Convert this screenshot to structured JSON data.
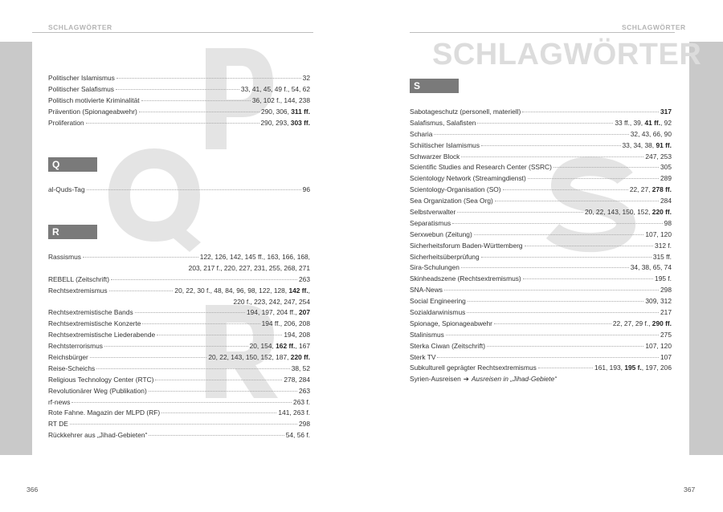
{
  "running_head_left": "SCHLAGWÖRTER",
  "running_head_right": "SCHLAGWÖRTER",
  "title": "SCHLAGWÖRTER",
  "page_left": "366",
  "page_right": "367",
  "letters": {
    "P": "P",
    "Q": "Q",
    "R": "R",
    "S": "S"
  },
  "left_sections": [
    {
      "id": "p",
      "entries": [
        {
          "term": "Politischer Islamismus",
          "lines": [
            [
              {
                "t": "32"
              }
            ]
          ]
        },
        {
          "term": "Politischer Salafismus",
          "lines": [
            [
              {
                "t": "33, 41, 45, 49 f., 54, 62"
              }
            ]
          ]
        },
        {
          "term": "Politisch motivierte Kriminalität",
          "lines": [
            [
              {
                "t": "36, 102 f., 144, 238"
              }
            ]
          ]
        },
        {
          "term": "Prävention (Spionageabwehr)",
          "lines": [
            [
              {
                "t": "290, 306, "
              },
              {
                "t": "311 ff.",
                "b": true
              }
            ]
          ]
        },
        {
          "term": "Proliferation",
          "lines": [
            [
              {
                "t": "290, 293, "
              },
              {
                "t": "303 ff.",
                "b": true
              }
            ]
          ]
        }
      ]
    },
    {
      "id": "q",
      "entries": [
        {
          "term": "al-Quds-Tag",
          "lines": [
            [
              {
                "t": "96"
              }
            ]
          ]
        }
      ]
    },
    {
      "id": "r",
      "entries": [
        {
          "term": "Rassismus",
          "lines": [
            [
              {
                "t": "122, 126, 142, 145 ff., 163, 166, 168,"
              }
            ],
            [
              {
                "t": "203, 217 f., 220, 227, 231, 255, 268, 271"
              }
            ]
          ]
        },
        {
          "term": "REBELL (Zeitschrift)",
          "lines": [
            [
              {
                "t": "263"
              }
            ]
          ]
        },
        {
          "term": "Rechtsextremismus",
          "lines": [
            [
              {
                "t": "20, 22, 30 f., 48, 84, 96, 98, 122, 128, "
              },
              {
                "t": "142 ff.",
                "b": true
              },
              {
                "t": ","
              }
            ],
            [
              {
                "t": "220 f., 223, 242, 247, 254"
              }
            ]
          ]
        },
        {
          "term": "Rechtsextremistische Bands",
          "lines": [
            [
              {
                "t": "194, 197, 204 ff., "
              },
              {
                "t": "207",
                "b": true
              }
            ]
          ]
        },
        {
          "term": "Rechtsextremistische Konzerte",
          "lines": [
            [
              {
                "t": "194 ff., 206, 208"
              }
            ]
          ]
        },
        {
          "term": "Rechtsextremistische Liederabende",
          "lines": [
            [
              {
                "t": "194, 208"
              }
            ]
          ]
        },
        {
          "term": "Rechtsterrorismus",
          "lines": [
            [
              {
                "t": "20, 154, "
              },
              {
                "t": "162 ff.",
                "b": true
              },
              {
                "t": ", 167"
              }
            ]
          ]
        },
        {
          "term": "Reichsbürger",
          "lines": [
            [
              {
                "t": "20, 22, 143, 150, 152, 187, "
              },
              {
                "t": "220 ff.",
                "b": true
              }
            ]
          ]
        },
        {
          "term": "Reise-Scheichs",
          "lines": [
            [
              {
                "t": "38, 52"
              }
            ]
          ]
        },
        {
          "term": "Religious Technology Center (RTC)",
          "lines": [
            [
              {
                "t": "278, 284"
              }
            ]
          ]
        },
        {
          "term": "Revolutionärer Weg (Publikation)",
          "lines": [
            [
              {
                "t": "263"
              }
            ]
          ]
        },
        {
          "term": "rf-news",
          "lines": [
            [
              {
                "t": "263 f."
              }
            ]
          ]
        },
        {
          "term": "Rote Fahne. Magazin der MLPD (RF)",
          "lines": [
            [
              {
                "t": "141, 263 f."
              }
            ]
          ]
        },
        {
          "term": "RT DE",
          "lines": [
            [
              {
                "t": "298"
              }
            ]
          ]
        },
        {
          "term": "Rückkehrer aus „Jihad-Gebieten“",
          "lines": [
            [
              {
                "t": "54, 56 f."
              }
            ]
          ]
        }
      ]
    }
  ],
  "right_sections": [
    {
      "id": "s",
      "entries": [
        {
          "term": "Sabotageschutz (personell, materiell)",
          "lines": [
            [
              {
                "t": "317",
                "b": true
              }
            ]
          ]
        },
        {
          "term": "Salafismus, Salafisten",
          "lines": [
            [
              {
                "t": "33 ff., 39, "
              },
              {
                "t": "41 ff.",
                "b": true
              },
              {
                "t": ", 92"
              }
            ]
          ]
        },
        {
          "term": "Scharia",
          "lines": [
            [
              {
                "t": "32, 43, 66, 90"
              }
            ]
          ]
        },
        {
          "term": "Schiitischer Islamismus",
          "lines": [
            [
              {
                "t": "33, 34, 38, "
              },
              {
                "t": "91 ff.",
                "b": true
              }
            ]
          ]
        },
        {
          "term": "Schwarzer Block",
          "lines": [
            [
              {
                "t": "247, 253"
              }
            ]
          ]
        },
        {
          "term": "Scientific Studies and Research Center (SSRC)",
          "lines": [
            [
              {
                "t": "305"
              }
            ]
          ]
        },
        {
          "term": "Scientology Network (Streamingdienst)",
          "lines": [
            [
              {
                "t": "289"
              }
            ]
          ]
        },
        {
          "term": "Scientology-Organisation (SO)",
          "lines": [
            [
              {
                "t": "22, 27, "
              },
              {
                "t": "278 ff.",
                "b": true
              }
            ]
          ]
        },
        {
          "term": "Sea Organization (Sea Org)",
          "lines": [
            [
              {
                "t": "284"
              }
            ]
          ]
        },
        {
          "term": "Selbstverwalter",
          "lines": [
            [
              {
                "t": "20, 22, 143, 150, 152, "
              },
              {
                "t": "220 ff.",
                "b": true
              }
            ]
          ]
        },
        {
          "term": "Separatismus",
          "lines": [
            [
              {
                "t": "98"
              }
            ]
          ]
        },
        {
          "term": "Serxwebun (Zeitung)",
          "lines": [
            [
              {
                "t": "107, 120"
              }
            ]
          ]
        },
        {
          "term": "Sicherheitsforum Baden-Württemberg",
          "lines": [
            [
              {
                "t": "312 f."
              }
            ]
          ]
        },
        {
          "term": "Sicherheitsüberprüfung",
          "lines": [
            [
              {
                "t": "315 ff."
              }
            ]
          ]
        },
        {
          "term": "Sira-Schulungen",
          "lines": [
            [
              {
                "t": "34, 38, 65, 74"
              }
            ]
          ]
        },
        {
          "term": "Skinheadszene (Rechtsextremismus)",
          "lines": [
            [
              {
                "t": "195 f."
              }
            ]
          ]
        },
        {
          "term": "SNA-News",
          "lines": [
            [
              {
                "t": "298"
              }
            ]
          ]
        },
        {
          "term": "Social Engineering",
          "lines": [
            [
              {
                "t": "309, 312"
              }
            ]
          ]
        },
        {
          "term": "Sozialdarwinismus",
          "lines": [
            [
              {
                "t": "217"
              }
            ]
          ]
        },
        {
          "term": "Spionage, Spionageabwehr",
          "lines": [
            [
              {
                "t": "22, 27, 29 f., "
              },
              {
                "t": "290 ff.",
                "b": true
              }
            ]
          ]
        },
        {
          "term": "Stalinismus",
          "lines": [
            [
              {
                "t": "275"
              }
            ]
          ]
        },
        {
          "term": "Sterka Ciwan (Zeitschrift)",
          "lines": [
            [
              {
                "t": "107, 120"
              }
            ]
          ]
        },
        {
          "term": "Sterk TV",
          "lines": [
            [
              {
                "t": "107"
              }
            ]
          ]
        },
        {
          "term": "Subkulturell geprägter Rechtsextremismus",
          "lines": [
            [
              {
                "t": "161, 193, "
              },
              {
                "t": "195 f.",
                "b": true
              },
              {
                "t": ", 197, 206"
              }
            ]
          ]
        }
      ],
      "see": {
        "term": "Syrien-Ausreisen",
        "arrow": "➔",
        "target": "Ausreisen in „Jihad-Gebiete“"
      }
    }
  ]
}
